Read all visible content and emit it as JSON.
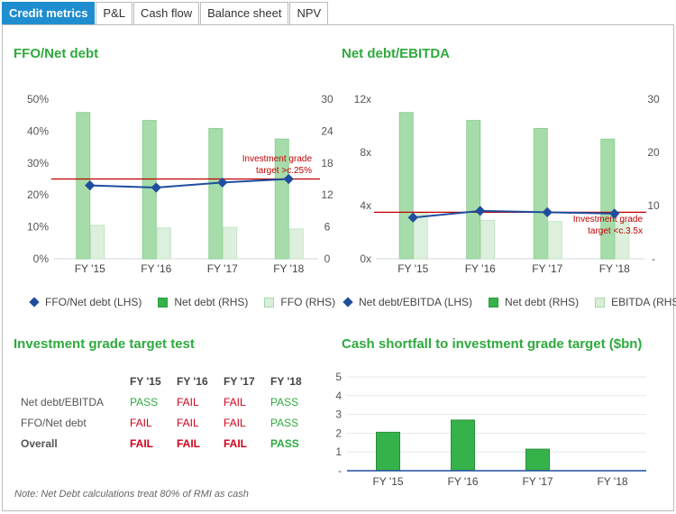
{
  "tabs": [
    {
      "label": "Credit metrics",
      "active": true
    },
    {
      "label": "P&L",
      "active": false
    },
    {
      "label": "Cash flow",
      "active": false
    },
    {
      "label": "Balance sheet",
      "active": false
    },
    {
      "label": "NPV",
      "active": false
    }
  ],
  "colors": {
    "accent": "#2eaa3e",
    "tab_active": "#1f8ed0",
    "bar_dark": "#35b24a",
    "bar_light": "#a6dcaa",
    "bar_pale": "#ddf0dd",
    "line": "#1f4e9e",
    "target": "#c00000"
  },
  "chart_data": [
    {
      "type": "bar",
      "title": "FFO/Net debt",
      "categories": [
        "FY '15",
        "FY '16",
        "FY '17",
        "FY '18"
      ],
      "left_axis": {
        "ticks": [
          "0%",
          "10%",
          "20%",
          "30%",
          "40%",
          "50%"
        ],
        "ylim": [
          0,
          50
        ]
      },
      "right_axis": {
        "ticks": [
          "0",
          "6",
          "12",
          "18",
          "24",
          "30"
        ],
        "ylim": [
          0,
          30
        ]
      },
      "series": [
        {
          "name": "Net debt (RHS)",
          "axis": "right",
          "kind": "bar",
          "values": [
            27.5,
            26,
            24.5,
            22.5
          ]
        },
        {
          "name": "FFO (RHS)",
          "axis": "right",
          "kind": "bar",
          "values": [
            6.3,
            5.8,
            5.9,
            5.6
          ]
        },
        {
          "name": "FFO/Net debt (LHS)",
          "axis": "left",
          "kind": "line",
          "values": [
            23,
            22.3,
            23.9,
            25
          ]
        }
      ],
      "target": {
        "value": 25,
        "label_lines": [
          "Investment grade",
          "target >c.25%"
        ]
      },
      "legend": [
        "FFO/Net debt (LHS)",
        "Net debt (RHS)",
        "FFO (RHS)"
      ]
    },
    {
      "type": "bar",
      "title": "Net debt/EBITDA",
      "categories": [
        "FY '15",
        "FY '16",
        "FY '17",
        "FY '18"
      ],
      "left_axis": {
        "ticks": [
          "0x",
          "4x",
          "8x",
          "12x"
        ],
        "ylim": [
          0,
          12
        ]
      },
      "right_axis": {
        "ticks": [
          "-",
          "10",
          "20",
          "30"
        ],
        "ylim": [
          0,
          30
        ]
      },
      "series": [
        {
          "name": "Net debt (RHS)",
          "axis": "right",
          "kind": "bar",
          "values": [
            27.5,
            26,
            24.5,
            22.5
          ]
        },
        {
          "name": "EBITDA (RHS)",
          "axis": "right",
          "kind": "bar",
          "values": [
            8.6,
            7.2,
            7,
            7
          ]
        },
        {
          "name": "Net debt/EBITDA (LHS)",
          "axis": "left",
          "kind": "line",
          "values": [
            3.1,
            3.6,
            3.5,
            3.4
          ]
        }
      ],
      "target": {
        "value": 3.5,
        "label_lines": [
          "Investment grade",
          "target <c.3.5x"
        ]
      },
      "legend": [
        "Net debt/EBITDA (LHS)",
        "Net debt (RHS)",
        "EBITDA (RHS)"
      ]
    },
    {
      "type": "bar",
      "title": "Cash shortfall to investment grade target ($bn)",
      "categories": [
        "FY '15",
        "FY '16",
        "FY '17",
        "FY '18"
      ],
      "y_ticks": [
        "-",
        "1",
        "2",
        "3",
        "4",
        "5"
      ],
      "ylim": [
        0,
        5
      ],
      "values": [
        2.05,
        2.7,
        1.15,
        0
      ]
    }
  ],
  "test": {
    "title": "Investment grade target test",
    "years": [
      "FY '15",
      "FY '16",
      "FY '17",
      "FY '18"
    ],
    "rows": [
      {
        "label": "Net debt/EBITDA",
        "values": [
          "PASS",
          "FAIL",
          "FAIL",
          "PASS"
        ]
      },
      {
        "label": "FFO/Net debt",
        "values": [
          "FAIL",
          "FAIL",
          "FAIL",
          "PASS"
        ]
      },
      {
        "label": "Overall",
        "values": [
          "FAIL",
          "FAIL",
          "FAIL",
          "PASS"
        ]
      }
    ]
  },
  "note": "Note: Net Debt calculations treat 80% of RMI as cash"
}
